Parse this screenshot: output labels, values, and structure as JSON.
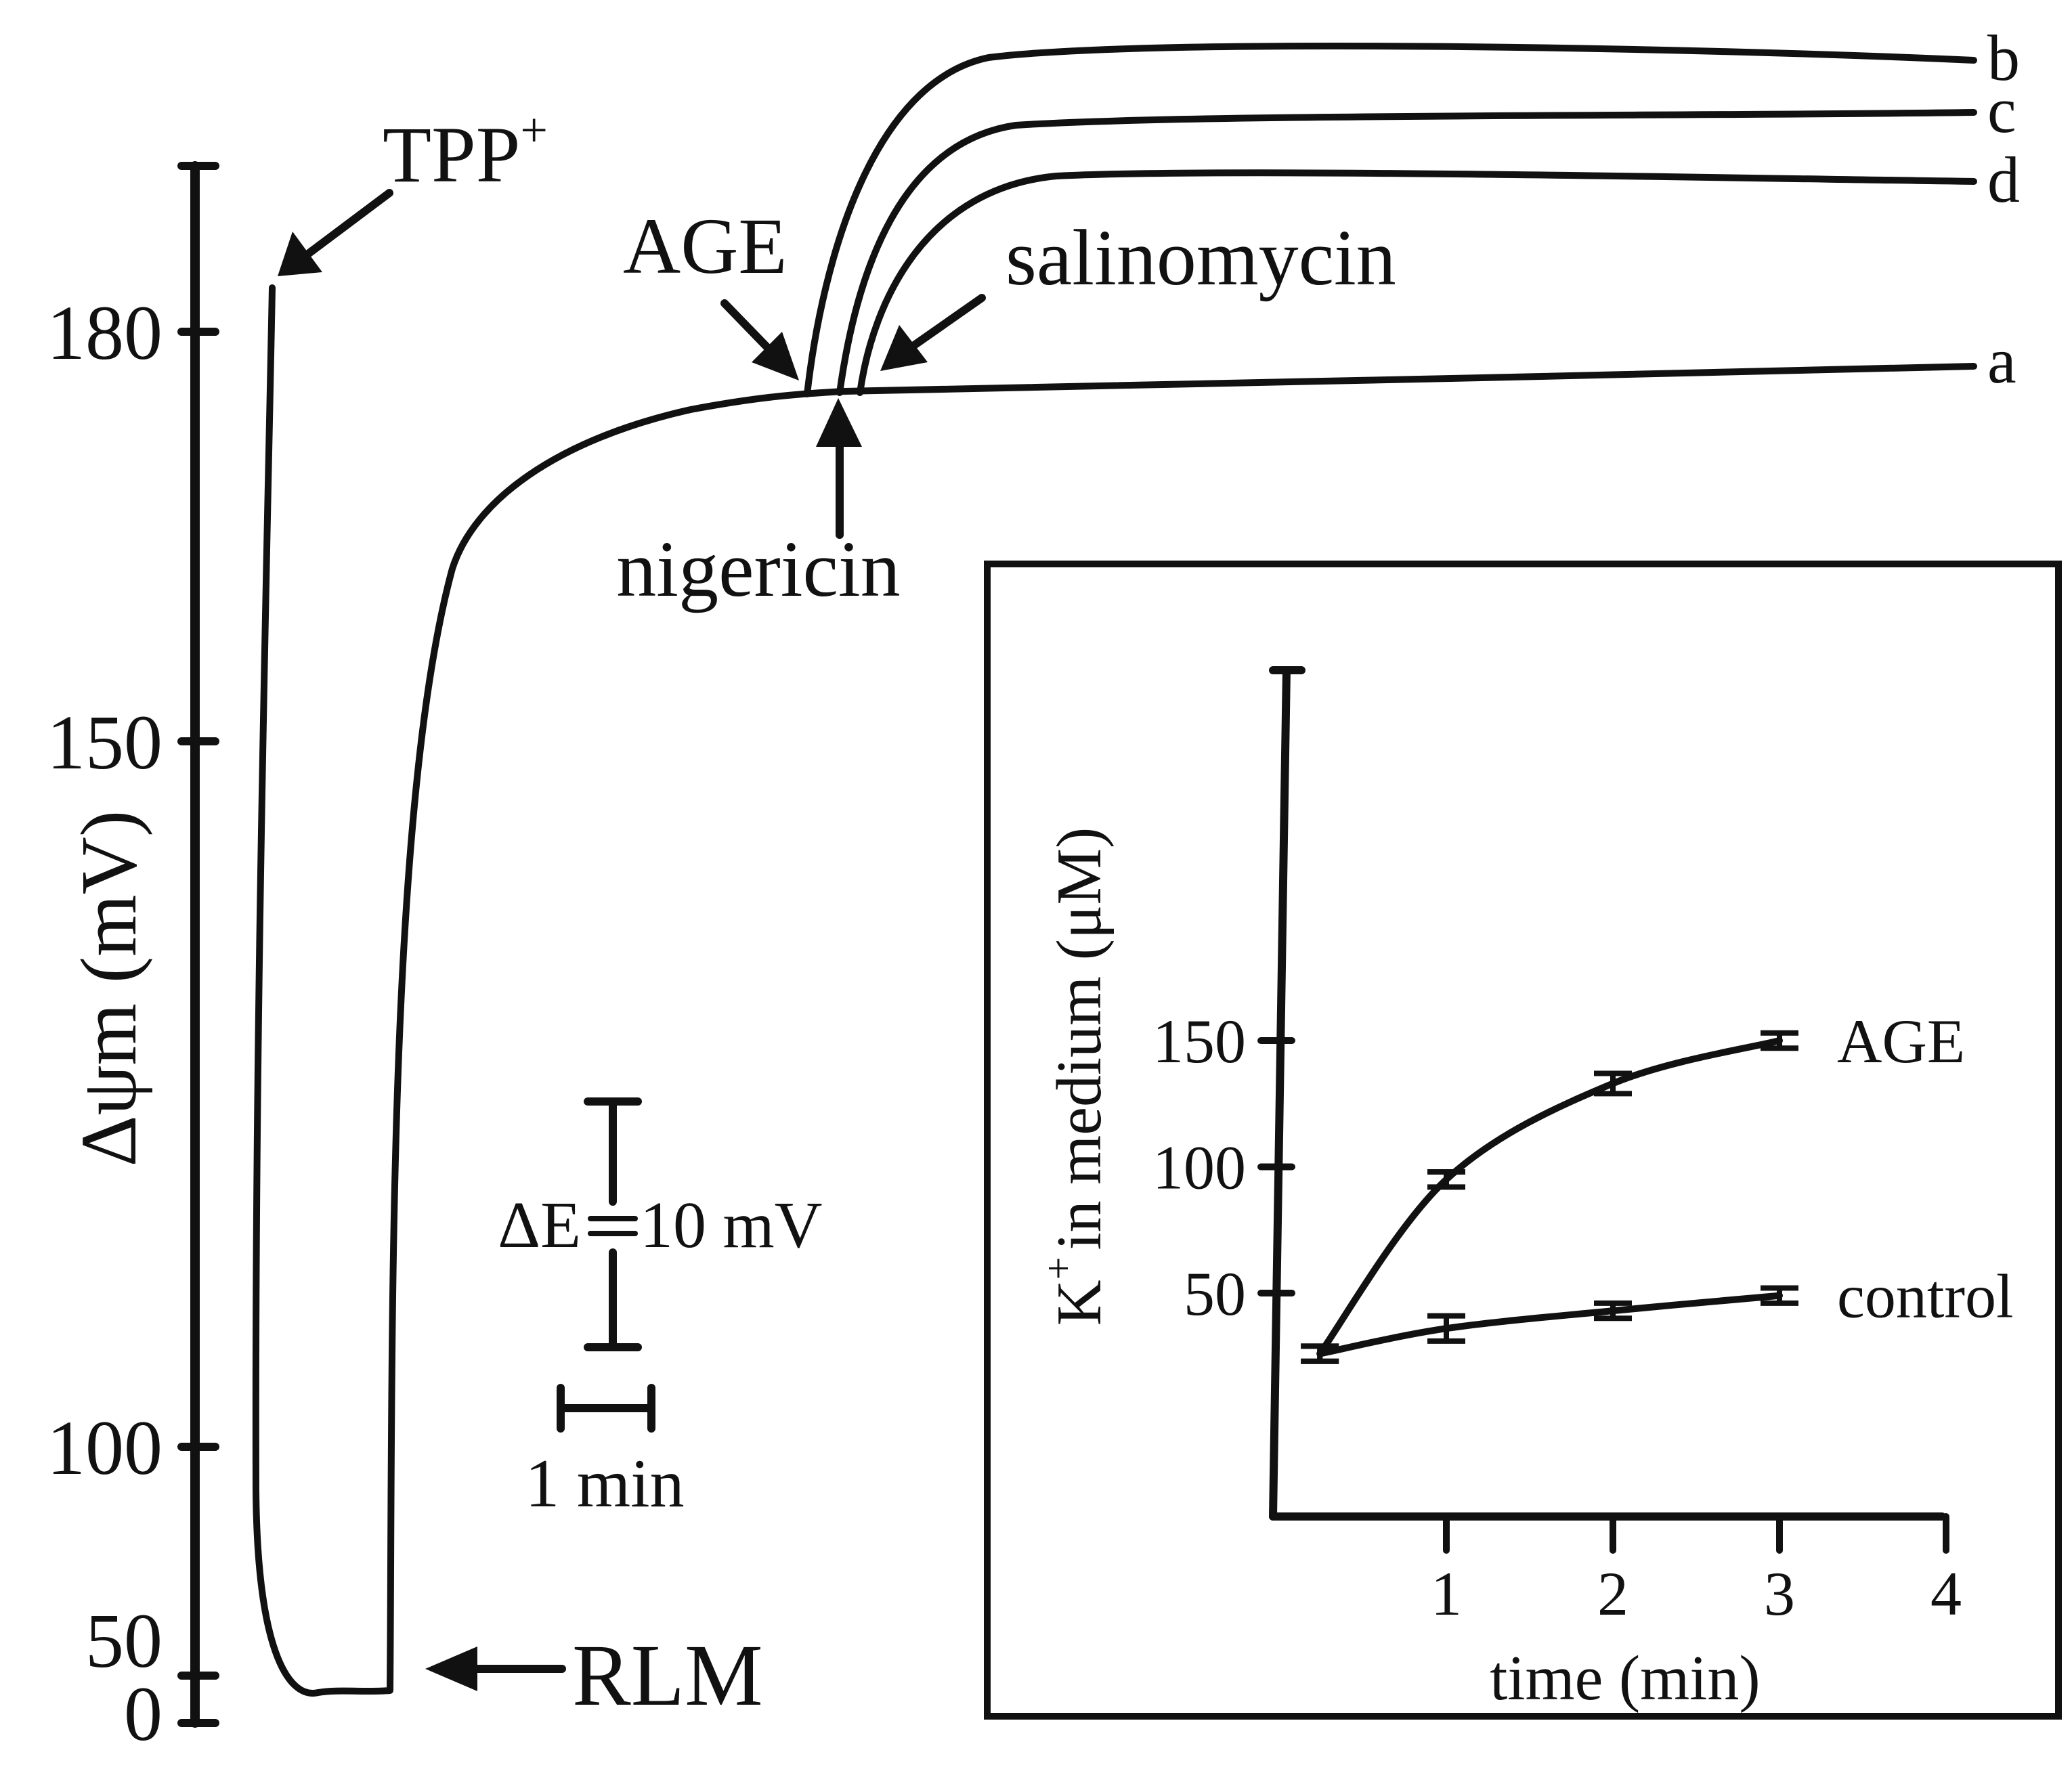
{
  "colors": {
    "ink": "#111111",
    "background": "#ffffff"
  },
  "chart_data": [
    {
      "type": "line",
      "title": "",
      "xlabel": "",
      "ylabel": "Δψm (mV)",
      "yticks": [
        "180",
        "150",
        "100",
        "50",
        "0"
      ],
      "ylim": [
        0,
        192
      ],
      "series": [
        {
          "name": "a",
          "values": [
            [
              -1.6,
              40
            ],
            [
              -1.55,
              3
            ],
            [
              -1.5,
              2
            ],
            [
              -1.4,
              185
            ],
            [
              0,
              170
            ],
            [
              2,
              175
            ],
            [
              4,
              176
            ],
            [
              9,
              177
            ]
          ]
        },
        {
          "name": "b",
          "values": [
            [
              4,
              176
            ],
            [
              5,
              205
            ],
            [
              7,
              207
            ],
            [
              9,
              206
            ]
          ]
        },
        {
          "name": "c",
          "values": [
            [
              4.2,
              176
            ],
            [
              5.2,
              200
            ],
            [
              7,
              201
            ],
            [
              9,
              200
            ]
          ]
        },
        {
          "name": "d",
          "values": [
            [
              4.4,
              176
            ],
            [
              5.4,
              195
            ],
            [
              7,
              196
            ],
            [
              9,
              195
            ]
          ]
        }
      ],
      "annotations": {
        "tpp": "TPP",
        "tpp_sup": "+",
        "rlm": "RLM",
        "age": "AGE",
        "nigericin": "nigericin",
        "salinomycin": "salinomycin"
      },
      "scale_bar": {
        "delta_e": "ΔE",
        "delta_e_value": "10 mV",
        "time": "1 min"
      }
    },
    {
      "type": "line",
      "title": "",
      "xlabel": "time (min)",
      "ylabel_k": "K",
      "ylabel_sup": "+",
      "ylabel_rest": "in medium (μM)",
      "xticks": [
        "1",
        "2",
        "3",
        "4"
      ],
      "yticks": [
        "150",
        "100",
        "50"
      ],
      "xlim": [
        0,
        4
      ],
      "ylim": [
        0,
        170
      ],
      "series": [
        {
          "name": "AGE",
          "x": [
            0.2,
            1,
            2,
            3
          ],
          "values": [
            26,
            95,
            133,
            150
          ],
          "errors": [
            3,
            3,
            4,
            3
          ]
        },
        {
          "name": "control",
          "x": [
            0.2,
            1,
            2,
            3
          ],
          "values": [
            26,
            36,
            43,
            49
          ],
          "errors": [
            3,
            5,
            3,
            3
          ]
        }
      ]
    }
  ]
}
